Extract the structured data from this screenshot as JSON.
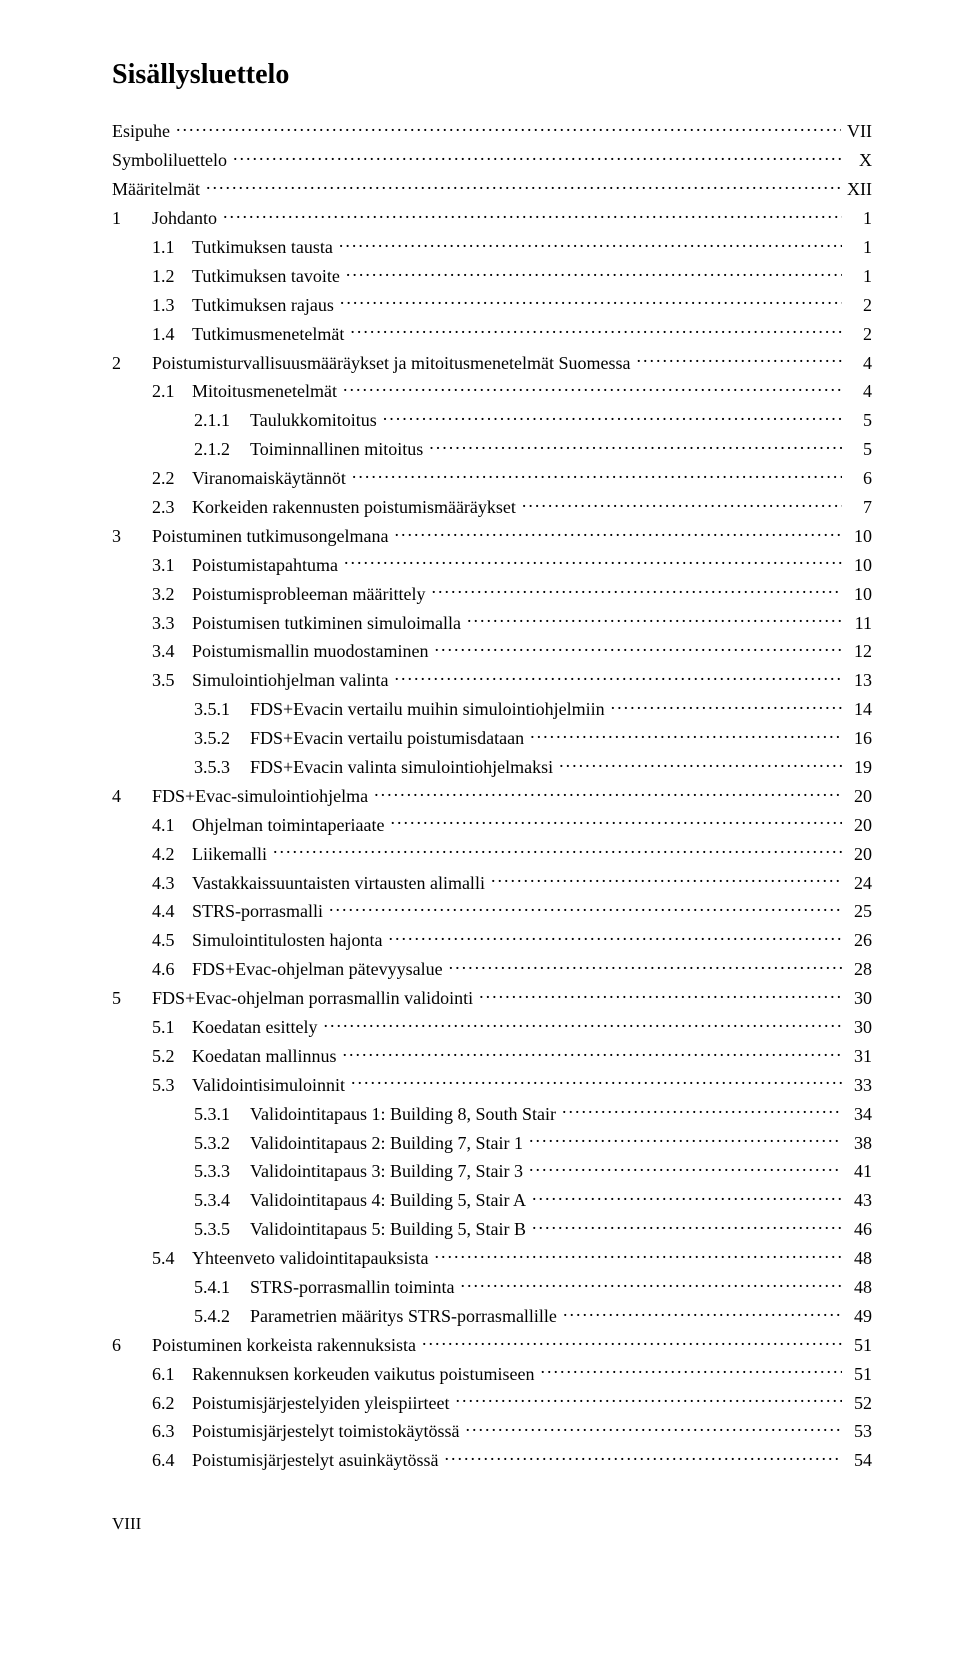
{
  "title": "Sisällysluettelo",
  "footer": "VIII",
  "entries": [
    {
      "level": 0,
      "num": "",
      "label": "Esipuhe",
      "page": "VII"
    },
    {
      "level": 0,
      "num": "",
      "label": "Symboliluettelo",
      "page": "X"
    },
    {
      "level": 0,
      "num": "",
      "label": "Määritelmät",
      "page": "XII"
    },
    {
      "level": 1,
      "num": "1",
      "label": "Johdanto",
      "page": "1"
    },
    {
      "level": 2,
      "num": "1.1",
      "label": "Tutkimuksen tausta",
      "page": "1"
    },
    {
      "level": 2,
      "num": "1.2",
      "label": "Tutkimuksen tavoite",
      "page": "1"
    },
    {
      "level": 2,
      "num": "1.3",
      "label": "Tutkimuksen rajaus",
      "page": "2"
    },
    {
      "level": 2,
      "num": "1.4",
      "label": "Tutkimusmenetelmät",
      "page": "2"
    },
    {
      "level": 1,
      "num": "2",
      "label": "Poistumisturvallisuusmääräykset ja mitoitusmenetelmät Suomessa",
      "page": "4"
    },
    {
      "level": 2,
      "num": "2.1",
      "label": "Mitoitusmenetelmät",
      "page": "4"
    },
    {
      "level": 3,
      "num": "2.1.1",
      "label": "Taulukkomitoitus",
      "page": "5"
    },
    {
      "level": 3,
      "num": "2.1.2",
      "label": "Toiminnallinen mitoitus",
      "page": "5"
    },
    {
      "level": 2,
      "num": "2.2",
      "label": "Viranomaiskäytännöt",
      "page": "6"
    },
    {
      "level": 2,
      "num": "2.3",
      "label": "Korkeiden rakennusten poistumismääräykset",
      "page": "7"
    },
    {
      "level": 1,
      "num": "3",
      "label": "Poistuminen tutkimusongelmana",
      "page": "10"
    },
    {
      "level": 2,
      "num": "3.1",
      "label": "Poistumistapahtuma",
      "page": "10"
    },
    {
      "level": 2,
      "num": "3.2",
      "label": "Poistumisprobleeman määrittely",
      "page": "10"
    },
    {
      "level": 2,
      "num": "3.3",
      "label": "Poistumisen tutkiminen simuloimalla",
      "page": "11"
    },
    {
      "level": 2,
      "num": "3.4",
      "label": "Poistumismallin muodostaminen",
      "page": "12"
    },
    {
      "level": 2,
      "num": "3.5",
      "label": "Simulointiohjelman valinta",
      "page": "13"
    },
    {
      "level": 3,
      "num": "3.5.1",
      "label": "FDS+Evacin vertailu muihin simulointiohjelmiin",
      "page": "14"
    },
    {
      "level": 3,
      "num": "3.5.2",
      "label": "FDS+Evacin vertailu poistumisdataan",
      "page": "16"
    },
    {
      "level": 3,
      "num": "3.5.3",
      "label": "FDS+Evacin valinta simulointiohjelmaksi",
      "page": "19"
    },
    {
      "level": 1,
      "num": "4",
      "label": "FDS+Evac-simulointiohjelma",
      "page": "20"
    },
    {
      "level": 2,
      "num": "4.1",
      "label": "Ohjelman toimintaperiaate",
      "page": "20"
    },
    {
      "level": 2,
      "num": "4.2",
      "label": "Liikemalli",
      "page": "20"
    },
    {
      "level": 2,
      "num": "4.3",
      "label": "Vastakkaissuuntaisten virtausten alimalli",
      "page": "24"
    },
    {
      "level": 2,
      "num": "4.4",
      "label": "STRS-porrasmalli",
      "page": "25"
    },
    {
      "level": 2,
      "num": "4.5",
      "label": "Simulointitulosten hajonta",
      "page": "26"
    },
    {
      "level": 2,
      "num": "4.6",
      "label": "FDS+Evac-ohjelman pätevyysalue",
      "page": "28"
    },
    {
      "level": 1,
      "num": "5",
      "label": "FDS+Evac-ohjelman porrasmallin validointi",
      "page": "30"
    },
    {
      "level": 2,
      "num": "5.1",
      "label": "Koedatan esittely",
      "page": "30"
    },
    {
      "level": 2,
      "num": "5.2",
      "label": "Koedatan mallinnus",
      "page": "31"
    },
    {
      "level": 2,
      "num": "5.3",
      "label": "Validointisimuloinnit",
      "page": "33"
    },
    {
      "level": 3,
      "num": "5.3.1",
      "label": "Validointitapaus 1: Building 8, South Stair",
      "page": "34"
    },
    {
      "level": 3,
      "num": "5.3.2",
      "label": "Validointitapaus 2: Building 7, Stair 1",
      "page": "38"
    },
    {
      "level": 3,
      "num": "5.3.3",
      "label": "Validointitapaus 3: Building 7, Stair 3",
      "page": "41"
    },
    {
      "level": 3,
      "num": "5.3.4",
      "label": "Validointitapaus 4: Building 5, Stair A",
      "page": "43"
    },
    {
      "level": 3,
      "num": "5.3.5",
      "label": "Validointitapaus 5: Building 5, Stair B",
      "page": "46"
    },
    {
      "level": 2,
      "num": "5.4",
      "label": "Yhteenveto validointitapauksista",
      "page": "48"
    },
    {
      "level": 3,
      "num": "5.4.1",
      "label": "STRS-porrasmallin toiminta",
      "page": "48"
    },
    {
      "level": 3,
      "num": "5.4.2",
      "label": "Parametrien määritys STRS-porrasmallille",
      "page": "49"
    },
    {
      "level": 1,
      "num": "6",
      "label": "Poistuminen korkeista rakennuksista",
      "page": "51"
    },
    {
      "level": 2,
      "num": "6.1",
      "label": "Rakennuksen korkeuden vaikutus poistumiseen",
      "page": "51"
    },
    {
      "level": 2,
      "num": "6.2",
      "label": "Poistumisjärjestelyiden yleispiirteet",
      "page": "52"
    },
    {
      "level": 2,
      "num": "6.3",
      "label": "Poistumisjärjestelyt toimistokäytössä",
      "page": "53"
    },
    {
      "level": 2,
      "num": "6.4",
      "label": "Poistumisjärjestelyt asuinkäytössä",
      "page": "54"
    }
  ]
}
